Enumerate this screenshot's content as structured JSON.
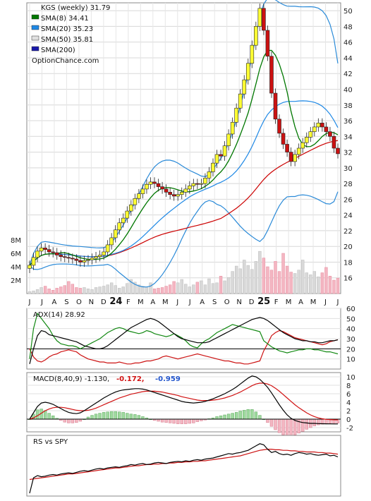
{
  "chart_data": [
    {
      "type": "candlestick",
      "panel": "price",
      "legend": [
        {
          "label": "KGS (weekly) 31.79",
          "color": "#ffffff"
        },
        {
          "label": "SMA(8) 34.41",
          "color": "#007700"
        },
        {
          "label": "SMA(20) 35.23",
          "color": "#1e88e5"
        },
        {
          "label": "SMA(50) 35.81",
          "color": "#e0e0e0"
        },
        {
          "label": "SMA(200)",
          "color": "#1a1aaa"
        },
        {
          "label": "OptionChance.com",
          "color": null
        }
      ],
      "ylim": [
        14,
        51
      ],
      "y_ticks": [
        16,
        18,
        20,
        22,
        24,
        26,
        28,
        30,
        32,
        34,
        36,
        38,
        40,
        42,
        44,
        46,
        48,
        50
      ],
      "x_labels": [
        "J",
        "J",
        "A",
        "S",
        "O",
        "N",
        "D",
        "24",
        "F",
        "M",
        "A",
        "M",
        "J",
        "J",
        "A",
        "S",
        "O",
        "N",
        "D",
        "25",
        "F",
        "M",
        "A",
        "M",
        "J",
        "J"
      ],
      "x_label_bold": [
        "24",
        "25"
      ],
      "close": [
        17.6,
        18.6,
        19.4,
        19.8,
        19.6,
        19.3,
        19.2,
        18.9,
        18.7,
        18.6,
        18.5,
        18.4,
        18.2,
        18.0,
        18.2,
        18.3,
        18.5,
        18.7,
        18.9,
        19.3,
        20.2,
        21.1,
        22.1,
        23.0,
        23.6,
        24.5,
        25.3,
        26.1,
        26.7,
        27.3,
        27.9,
        28.2,
        28.0,
        27.6,
        27.3,
        26.9,
        26.6,
        26.4,
        26.6,
        26.9,
        27.3,
        27.7,
        28.0,
        27.9,
        28.0,
        28.7,
        29.5,
        30.6,
        31.7,
        31.5,
        32.8,
        34.3,
        35.8,
        37.6,
        39.4,
        41.2,
        43.3,
        45.6,
        48.0,
        50.3,
        47.5,
        44.2,
        39.5,
        36.2,
        34.4,
        33.0,
        32.0,
        30.8,
        31.7,
        32.5,
        33.2,
        33.9,
        34.6,
        35.2,
        35.7,
        35.2,
        34.6,
        34.0,
        32.5,
        31.79
      ],
      "volume_m": [
        0.3,
        0.4,
        0.6,
        0.9,
        1.1,
        0.7,
        0.5,
        0.8,
        1.0,
        1.2,
        1.8,
        1.4,
        0.9,
        0.8,
        0.9,
        0.7,
        0.6,
        0.9,
        1.0,
        1.1,
        1.3,
        1.6,
        1.2,
        0.8,
        1.0,
        1.5,
        2.1,
        1.7,
        1.3,
        1.1,
        1.0,
        1.6,
        0.7,
        0.8,
        0.9,
        1.1,
        1.3,
        1.8,
        1.6,
        2.1,
        1.4,
        1.0,
        1.3,
        1.7,
        1.9,
        1.3,
        2.2,
        1.5,
        1.6,
        2.6,
        1.9,
        2.4,
        3.3,
        4.1,
        3.7,
        5.0,
        4.2,
        3.6,
        4.8,
        6.3,
        5.3,
        4.0,
        3.5,
        4.8,
        3.3,
        6.0,
        4.1,
        3.2,
        3.0,
        3.5,
        5.0,
        3.1,
        2.8,
        3.3,
        2.5,
        3.1,
        3.9,
        2.6,
        2.0,
        2.3
      ],
      "vol_ticks": [
        "2M",
        "4M",
        "6M",
        "8M"
      ]
    },
    {
      "type": "line",
      "panel": "adx",
      "title": "ADX(14) 28.92",
      "ylim": [
        0,
        60
      ],
      "y_ticks": [
        10,
        20,
        30,
        40,
        50,
        60
      ],
      "series": [
        {
          "name": "ADX",
          "color": "#000000",
          "values": [
            5,
            20,
            33,
            38,
            37,
            34,
            33,
            32,
            31,
            30,
            29,
            28,
            27,
            25,
            23,
            22,
            21,
            20,
            20,
            21,
            23,
            26,
            29,
            32,
            35,
            38,
            41,
            43,
            45,
            47,
            49,
            50,
            49,
            47,
            44,
            41,
            38,
            35,
            32,
            30,
            29,
            28,
            27,
            26,
            26,
            26,
            27,
            29,
            31,
            33,
            35,
            37,
            39,
            41,
            43,
            45,
            47,
            49,
            50,
            51,
            50,
            48,
            45,
            42,
            39,
            36,
            34,
            32,
            30,
            29,
            28,
            28,
            27,
            27,
            26,
            26,
            27,
            28,
            28,
            28.92
          ]
        },
        {
          "name": "+DI",
          "color": "#118811",
          "values": [
            10,
            40,
            55,
            50,
            45,
            40,
            33,
            28,
            25,
            24,
            23,
            23,
            22,
            20,
            22,
            24,
            26,
            28,
            30,
            33,
            36,
            38,
            40,
            41,
            40,
            38,
            37,
            36,
            35,
            36,
            38,
            37,
            35,
            34,
            33,
            32,
            33,
            35,
            33,
            31,
            28,
            24,
            22,
            21,
            25,
            28,
            30,
            33,
            36,
            38,
            40,
            42,
            44,
            43,
            42,
            41,
            40,
            39,
            38,
            37,
            28,
            25,
            22,
            20,
            18,
            17,
            16,
            17,
            18,
            19,
            19,
            20,
            20,
            19,
            19,
            18,
            17,
            17,
            16,
            15
          ]
        },
        {
          "name": "-DI",
          "color": "#cc1111",
          "values": [
            20,
            12,
            8,
            7,
            9,
            12,
            14,
            15,
            17,
            18,
            19,
            18,
            17,
            14,
            12,
            10,
            9,
            8,
            7,
            7,
            6,
            6,
            6,
            7,
            6,
            5,
            5,
            6,
            6,
            7,
            8,
            8,
            9,
            10,
            12,
            13,
            12,
            11,
            10,
            11,
            12,
            13,
            14,
            15,
            14,
            13,
            12,
            11,
            10,
            9,
            8,
            8,
            7,
            6,
            6,
            5,
            5,
            6,
            7,
            8,
            18,
            25,
            33,
            36,
            38,
            37,
            35,
            33,
            31,
            30,
            29,
            28,
            27,
            26,
            25,
            24,
            25,
            27,
            28,
            29
          ]
        }
      ]
    },
    {
      "type": "line",
      "panel": "macd",
      "title": "MACD(8,40,9) -1.130,",
      "title_values": [
        {
          "text": "-0.172,",
          "color": "#d11111"
        },
        {
          "text": "-0.959",
          "color": "#2255cc"
        }
      ],
      "ylim": [
        -3,
        11
      ],
      "y_ticks": [
        -2,
        0,
        2,
        4,
        6,
        8,
        10
      ],
      "series": [
        {
          "name": "MACD",
          "color": "#000000",
          "values": [
            0,
            1.5,
            3.0,
            3.8,
            4.0,
            3.8,
            3.5,
            3.0,
            2.5,
            2.0,
            1.6,
            1.4,
            1.3,
            1.5,
            2.0,
            2.6,
            3.2,
            3.8,
            4.4,
            5.0,
            5.5,
            6.0,
            6.4,
            6.7,
            6.9,
            7.0,
            7.1,
            7.2,
            7.2,
            7.1,
            6.9,
            6.6,
            6.3,
            6.0,
            5.7,
            5.4,
            5.1,
            4.8,
            4.5,
            4.2,
            4.0,
            3.9,
            3.8,
            3.9,
            4.0,
            4.2,
            4.5,
            4.8,
            5.2,
            5.6,
            6.0,
            6.5,
            7.0,
            7.6,
            8.3,
            9.0,
            9.7,
            10.2,
            10.0,
            9.4,
            8.5,
            7.5,
            6.2,
            4.8,
            3.4,
            2.1,
            1.0,
            0.2,
            -0.3,
            -0.6,
            -0.8,
            -0.9,
            -1.0,
            -1.0,
            -1.05,
            -1.08,
            -1.1,
            -1.12,
            -1.13,
            -1.13
          ]
        },
        {
          "name": "Signal",
          "color": "#d11111",
          "values": [
            0,
            0.3,
            0.8,
            1.4,
            2.0,
            2.4,
            2.7,
            2.8,
            2.8,
            2.7,
            2.5,
            2.3,
            2.1,
            2.0,
            2.0,
            2.1,
            2.3,
            2.6,
            3.0,
            3.4,
            3.8,
            4.2,
            4.6,
            5.0,
            5.3,
            5.6,
            5.9,
            6.1,
            6.3,
            6.5,
            6.6,
            6.6,
            6.6,
            6.5,
            6.4,
            6.2,
            6.0,
            5.8,
            5.6,
            5.3,
            5.1,
            4.9,
            4.7,
            4.5,
            4.4,
            4.4,
            4.4,
            4.5,
            4.6,
            4.8,
            5.0,
            5.3,
            5.6,
            6.0,
            6.4,
            6.9,
            7.4,
            7.9,
            8.3,
            8.5,
            8.5,
            8.3,
            7.9,
            7.3,
            6.6,
            5.8,
            5.0,
            4.2,
            3.4,
            2.7,
            2.1,
            1.5,
            1.0,
            0.6,
            0.3,
            0.1,
            -0.05,
            -0.1,
            -0.15,
            -0.172
          ]
        }
      ]
    },
    {
      "type": "line",
      "panel": "rs",
      "title": "RS vs SPY",
      "series": [
        {
          "name": "RS",
          "color": "#000000",
          "values": [
            0.0,
            0.28,
            0.32,
            0.3,
            0.31,
            0.33,
            0.34,
            0.33,
            0.35,
            0.36,
            0.37,
            0.36,
            0.38,
            0.4,
            0.41,
            0.4,
            0.42,
            0.44,
            0.45,
            0.44,
            0.46,
            0.47,
            0.48,
            0.47,
            0.49,
            0.5,
            0.52,
            0.51,
            0.53,
            0.54,
            0.52,
            0.53,
            0.55,
            0.56,
            0.55,
            0.54,
            0.56,
            0.57,
            0.58,
            0.57,
            0.59,
            0.58,
            0.6,
            0.61,
            0.6,
            0.62,
            0.63,
            0.64,
            0.66,
            0.68,
            0.7,
            0.72,
            0.71,
            0.73,
            0.74,
            0.76,
            0.78,
            0.82,
            0.86,
            0.9,
            0.88,
            0.8,
            0.74,
            0.76,
            0.72,
            0.7,
            0.71,
            0.69,
            0.72,
            0.74,
            0.73,
            0.71,
            0.72,
            0.7,
            0.69,
            0.7,
            0.71,
            0.68,
            0.69,
            0.66
          ]
        },
        {
          "name": "RS SMA",
          "color": "#cc1111",
          "values": [
            0.25,
            0.26,
            0.27,
            0.28,
            0.29,
            0.3,
            0.31,
            0.32,
            0.33,
            0.34,
            0.35,
            0.35,
            0.36,
            0.37,
            0.38,
            0.39,
            0.4,
            0.41,
            0.42,
            0.43,
            0.44,
            0.45,
            0.46,
            0.46,
            0.47,
            0.48,
            0.49,
            0.5,
            0.5,
            0.51,
            0.52,
            0.52,
            0.53,
            0.53,
            0.54,
            0.54,
            0.55,
            0.55,
            0.56,
            0.56,
            0.57,
            0.57,
            0.58,
            0.58,
            0.59,
            0.59,
            0.6,
            0.61,
            0.62,
            0.63,
            0.64,
            0.65,
            0.66,
            0.67,
            0.68,
            0.7,
            0.72,
            0.74,
            0.76,
            0.78,
            0.79,
            0.8,
            0.8,
            0.79,
            0.79,
            0.78,
            0.78,
            0.77,
            0.77,
            0.76,
            0.76,
            0.75,
            0.75,
            0.75,
            0.74,
            0.74,
            0.73,
            0.73,
            0.72,
            0.71
          ]
        }
      ]
    }
  ]
}
